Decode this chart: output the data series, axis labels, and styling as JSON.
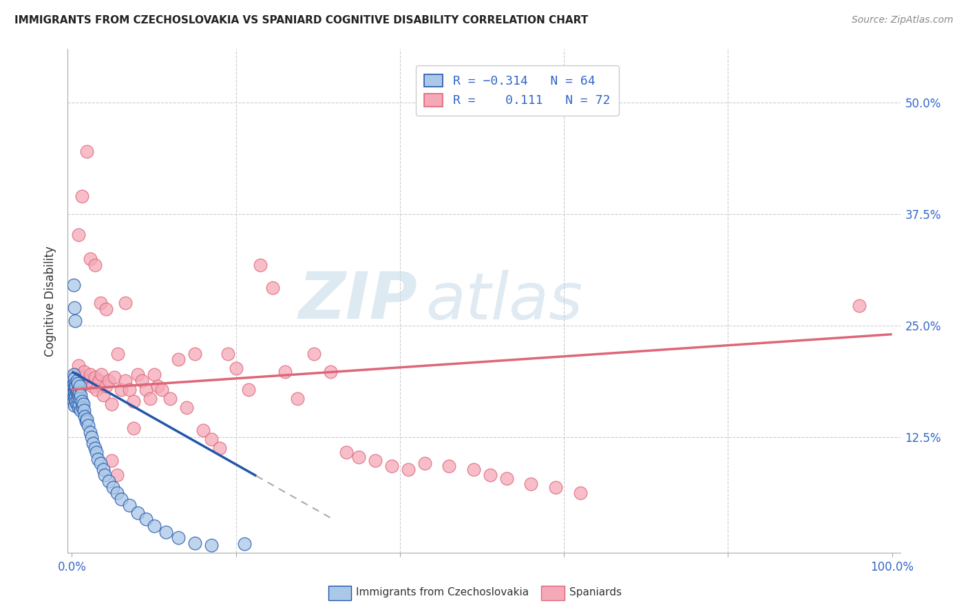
{
  "title": "IMMIGRANTS FROM CZECHOSLOVAKIA VS SPANIARD COGNITIVE DISABILITY CORRELATION CHART",
  "source": "Source: ZipAtlas.com",
  "ylabel": "Cognitive Disability",
  "right_ytick_vals": [
    0.125,
    0.25,
    0.375,
    0.5
  ],
  "right_ytick_labels": [
    "12.5%",
    "25.0%",
    "37.5%",
    "50.0%"
  ],
  "xlim": [
    -0.005,
    1.01
  ],
  "ylim": [
    -0.005,
    0.56
  ],
  "blue_color": "#aac8e8",
  "pink_color": "#f5a8b8",
  "blue_line_color": "#2255aa",
  "pink_line_color": "#dd6677",
  "watermark_zip": "ZIP",
  "watermark_atlas": "atlas",
  "blue_slope": -0.52,
  "blue_intercept": 0.198,
  "blue_line_xstart": 0.0,
  "blue_line_xend": 0.225,
  "blue_dash_xstart": 0.225,
  "blue_dash_xend": 0.32,
  "pink_slope": 0.062,
  "pink_intercept": 0.178,
  "blue_scatter_x": [
    0.001,
    0.001,
    0.001,
    0.002,
    0.002,
    0.002,
    0.002,
    0.003,
    0.003,
    0.003,
    0.003,
    0.004,
    0.004,
    0.004,
    0.005,
    0.005,
    0.005,
    0.006,
    0.006,
    0.006,
    0.007,
    0.007,
    0.007,
    0.008,
    0.008,
    0.009,
    0.009,
    0.01,
    0.01,
    0.011,
    0.011,
    0.012,
    0.013,
    0.014,
    0.015,
    0.016,
    0.017,
    0.018,
    0.02,
    0.022,
    0.024,
    0.026,
    0.028,
    0.03,
    0.032,
    0.035,
    0.038,
    0.04,
    0.045,
    0.05,
    0.055,
    0.06,
    0.07,
    0.08,
    0.09,
    0.1,
    0.115,
    0.13,
    0.15,
    0.17,
    0.002,
    0.003,
    0.004,
    0.21
  ],
  "blue_scatter_y": [
    0.18,
    0.19,
    0.175,
    0.185,
    0.17,
    0.195,
    0.165,
    0.18,
    0.175,
    0.19,
    0.16,
    0.185,
    0.172,
    0.168,
    0.178,
    0.165,
    0.182,
    0.175,
    0.188,
    0.162,
    0.177,
    0.168,
    0.185,
    0.172,
    0.158,
    0.175,
    0.162,
    0.168,
    0.182,
    0.155,
    0.172,
    0.165,
    0.158,
    0.162,
    0.155,
    0.148,
    0.142,
    0.145,
    0.138,
    0.13,
    0.125,
    0.118,
    0.112,
    0.108,
    0.1,
    0.095,
    0.088,
    0.082,
    0.075,
    0.068,
    0.062,
    0.055,
    0.048,
    0.04,
    0.033,
    0.025,
    0.018,
    0.012,
    0.006,
    0.003,
    0.295,
    0.27,
    0.255,
    0.005
  ],
  "pink_scatter_x": [
    0.004,
    0.006,
    0.008,
    0.01,
    0.012,
    0.015,
    0.017,
    0.02,
    0.022,
    0.025,
    0.028,
    0.03,
    0.033,
    0.036,
    0.038,
    0.042,
    0.045,
    0.048,
    0.052,
    0.056,
    0.06,
    0.065,
    0.07,
    0.075,
    0.08,
    0.085,
    0.09,
    0.095,
    0.1,
    0.105,
    0.11,
    0.12,
    0.13,
    0.14,
    0.15,
    0.16,
    0.17,
    0.18,
    0.19,
    0.2,
    0.215,
    0.23,
    0.245,
    0.26,
    0.275,
    0.295,
    0.315,
    0.335,
    0.35,
    0.37,
    0.39,
    0.41,
    0.43,
    0.46,
    0.49,
    0.51,
    0.53,
    0.56,
    0.59,
    0.62,
    0.008,
    0.012,
    0.018,
    0.022,
    0.028,
    0.035,
    0.042,
    0.048,
    0.055,
    0.065,
    0.075,
    0.96
  ],
  "pink_scatter_y": [
    0.195,
    0.188,
    0.205,
    0.182,
    0.192,
    0.198,
    0.185,
    0.188,
    0.195,
    0.182,
    0.192,
    0.178,
    0.188,
    0.195,
    0.172,
    0.182,
    0.188,
    0.162,
    0.192,
    0.218,
    0.178,
    0.188,
    0.178,
    0.165,
    0.195,
    0.188,
    0.178,
    0.168,
    0.195,
    0.182,
    0.178,
    0.168,
    0.212,
    0.158,
    0.218,
    0.132,
    0.122,
    0.112,
    0.218,
    0.202,
    0.178,
    0.318,
    0.292,
    0.198,
    0.168,
    0.218,
    0.198,
    0.108,
    0.102,
    0.098,
    0.092,
    0.088,
    0.095,
    0.092,
    0.088,
    0.082,
    0.078,
    0.072,
    0.068,
    0.062,
    0.352,
    0.395,
    0.445,
    0.325,
    0.318,
    0.275,
    0.268,
    0.098,
    0.082,
    0.275,
    0.135,
    0.272
  ]
}
